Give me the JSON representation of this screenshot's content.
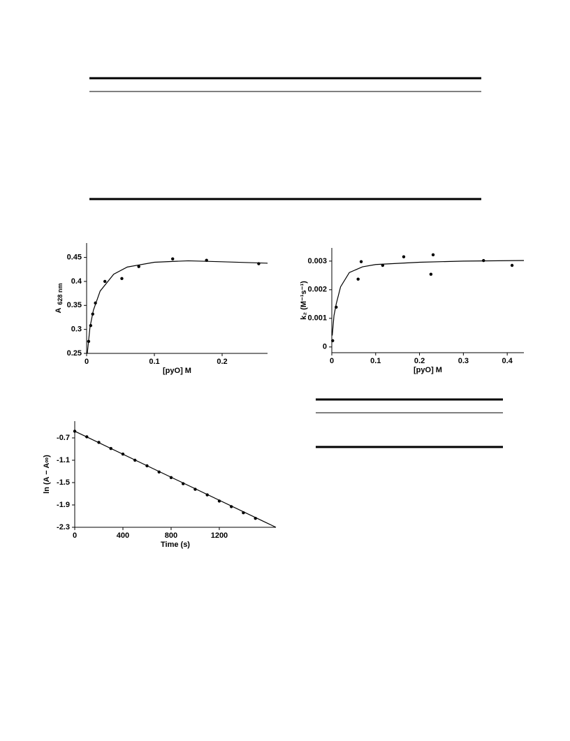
{
  "chart_data": [
    {
      "type": "scatter",
      "xlabel": "[pyO] M",
      "ylabel": "A",
      "ylabel_sub": "628 nm",
      "xlim": [
        0,
        0.267
      ],
      "ylim": [
        0.25,
        0.48
      ],
      "xticks": [
        0,
        0.1,
        0.2
      ],
      "yticks": [
        0.25,
        0.3,
        0.35,
        0.4,
        0.45
      ],
      "color": "#000000",
      "series": [
        {
          "style": "markers",
          "x": [
            0.003,
            0.006,
            0.009,
            0.013,
            0.027,
            0.052,
            0.077,
            0.127,
            0.177,
            0.254
          ],
          "values": [
            0.275,
            0.308,
            0.332,
            0.355,
            0.4,
            0.406,
            0.431,
            0.447,
            0.444,
            0.437
          ]
        },
        {
          "style": "line",
          "x": [
            0.001,
            0.005,
            0.01,
            0.02,
            0.04,
            0.06,
            0.1,
            0.15,
            0.2,
            0.267
          ],
          "values": [
            0.25,
            0.305,
            0.34,
            0.38,
            0.415,
            0.43,
            0.44,
            0.443,
            0.441,
            0.438
          ]
        }
      ]
    },
    {
      "type": "scatter",
      "xlabel": "[pyO] M",
      "ylabel": "k₂ (M⁻¹s⁻¹)",
      "xlim": [
        0,
        0.438
      ],
      "ylim": [
        -0.0002,
        0.00346
      ],
      "xticks": [
        0,
        0.1,
        0.2,
        0.3,
        0.4
      ],
      "yticks": [
        0,
        0.001,
        0.002,
        0.003
      ],
      "color": "#000000",
      "series": [
        {
          "style": "markers",
          "x": [
            0.002,
            0.01,
            0.06,
            0.067,
            0.116,
            0.164,
            0.226,
            0.231,
            0.346,
            0.411
          ],
          "values": [
            0.00022,
            0.00139,
            0.00237,
            0.00298,
            0.00285,
            0.00315,
            0.00254,
            0.00322,
            0.00302,
            0.00285
          ]
        },
        {
          "style": "line",
          "x": [
            0.001,
            0.005,
            0.01,
            0.02,
            0.04,
            0.07,
            0.1,
            0.2,
            0.3,
            0.438
          ],
          "values": [
            0.0004,
            0.0011,
            0.0015,
            0.0021,
            0.0026,
            0.0028,
            0.00288,
            0.00296,
            0.003,
            0.00302
          ]
        }
      ]
    },
    {
      "type": "scatter",
      "xlabel": "Time (s)",
      "ylabel": "ln (A − A∞)",
      "xlim": [
        0,
        1670
      ],
      "ylim": [
        -2.3,
        -0.4
      ],
      "xticks": [
        0,
        400,
        800,
        1200
      ],
      "yticks": [
        -0.7,
        -1.1,
        -1.5,
        -1.9,
        -2.3
      ],
      "color": "#000000",
      "series": [
        {
          "style": "markers",
          "x": [
            0,
            100,
            200,
            300,
            400,
            500,
            600,
            700,
            800,
            900,
            1000,
            1100,
            1200,
            1300,
            1400,
            1500
          ],
          "values": [
            -0.58,
            -0.68,
            -0.78,
            -0.89,
            -0.99,
            -1.1,
            -1.2,
            -1.31,
            -1.41,
            -1.52,
            -1.62,
            -1.72,
            -1.83,
            -1.93,
            -2.04,
            -2.14
          ]
        },
        {
          "style": "line",
          "x": [
            0,
            1670
          ],
          "values": [
            -0.58,
            -2.3
          ]
        }
      ]
    }
  ]
}
